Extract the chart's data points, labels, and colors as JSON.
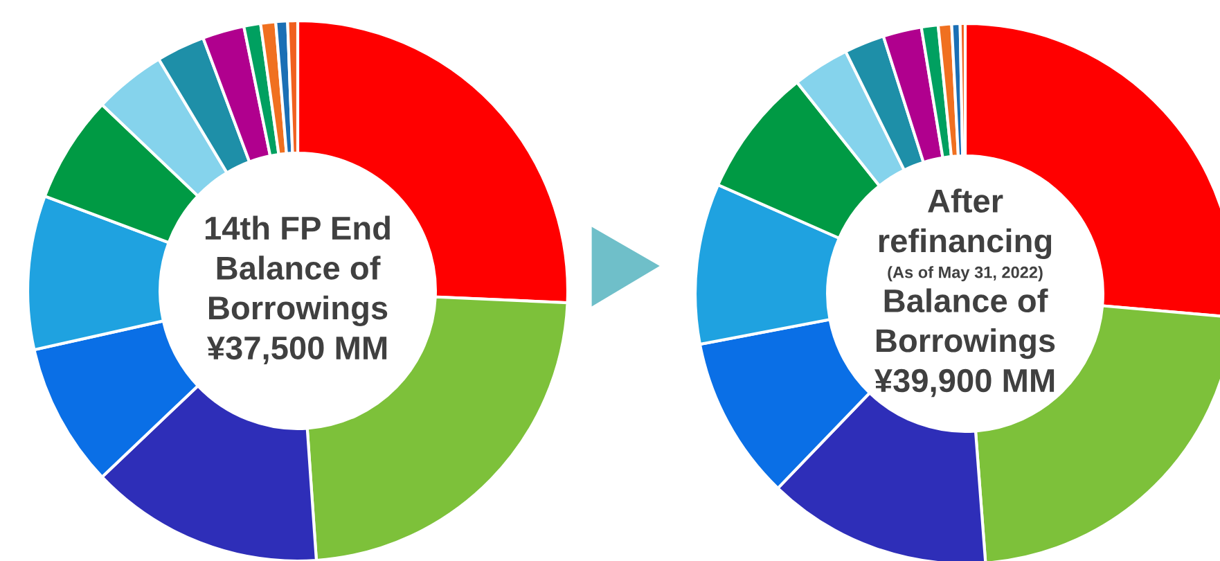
{
  "chart_data": [
    {
      "type": "donut",
      "title": "14th FP End",
      "annotations": [
        "Balance of Borrowings",
        "¥37,500 MM"
      ],
      "categories": [
        null,
        null,
        null,
        null,
        null,
        null,
        null,
        null,
        null,
        null,
        null,
        null,
        null
      ],
      "values": [
        25.7,
        23.2,
        14.0,
        8.6,
        9.2,
        6.4,
        4.3,
        2.9,
        2.5,
        1.0,
        0.9,
        0.7,
        0.6
      ],
      "colors": [
        "#ff0000",
        "#7dc13a",
        "#2e2eb8",
        "#0a6fe6",
        "#1fa2e0",
        "#009a44",
        "#85d3ec",
        "#1e8fa8",
        "#b0008e",
        "#00a060",
        "#f07020",
        "#1a6fb5",
        "#f06020"
      ]
    },
    {
      "type": "donut",
      "title": "After refinancing",
      "subtitle": "(As of May 31, 2022)",
      "annotations": [
        "Balance of Borrowings",
        "¥39,900 MM"
      ],
      "categories": [
        null,
        null,
        null,
        null,
        null,
        null,
        null,
        null,
        null,
        null,
        null,
        null,
        null
      ],
      "values": [
        26.4,
        22.4,
        13.4,
        9.8,
        9.6,
        7.7,
        3.4,
        2.4,
        2.3,
        1.0,
        0.8,
        0.5,
        0.3
      ],
      "colors": [
        "#ff0000",
        "#7dc13a",
        "#2e2eb8",
        "#0a6fe6",
        "#1fa2e0",
        "#009a44",
        "#85d3ec",
        "#1e8fa8",
        "#b0008e",
        "#00a060",
        "#f07020",
        "#1a6fb5",
        "#f06020"
      ]
    }
  ]
}
